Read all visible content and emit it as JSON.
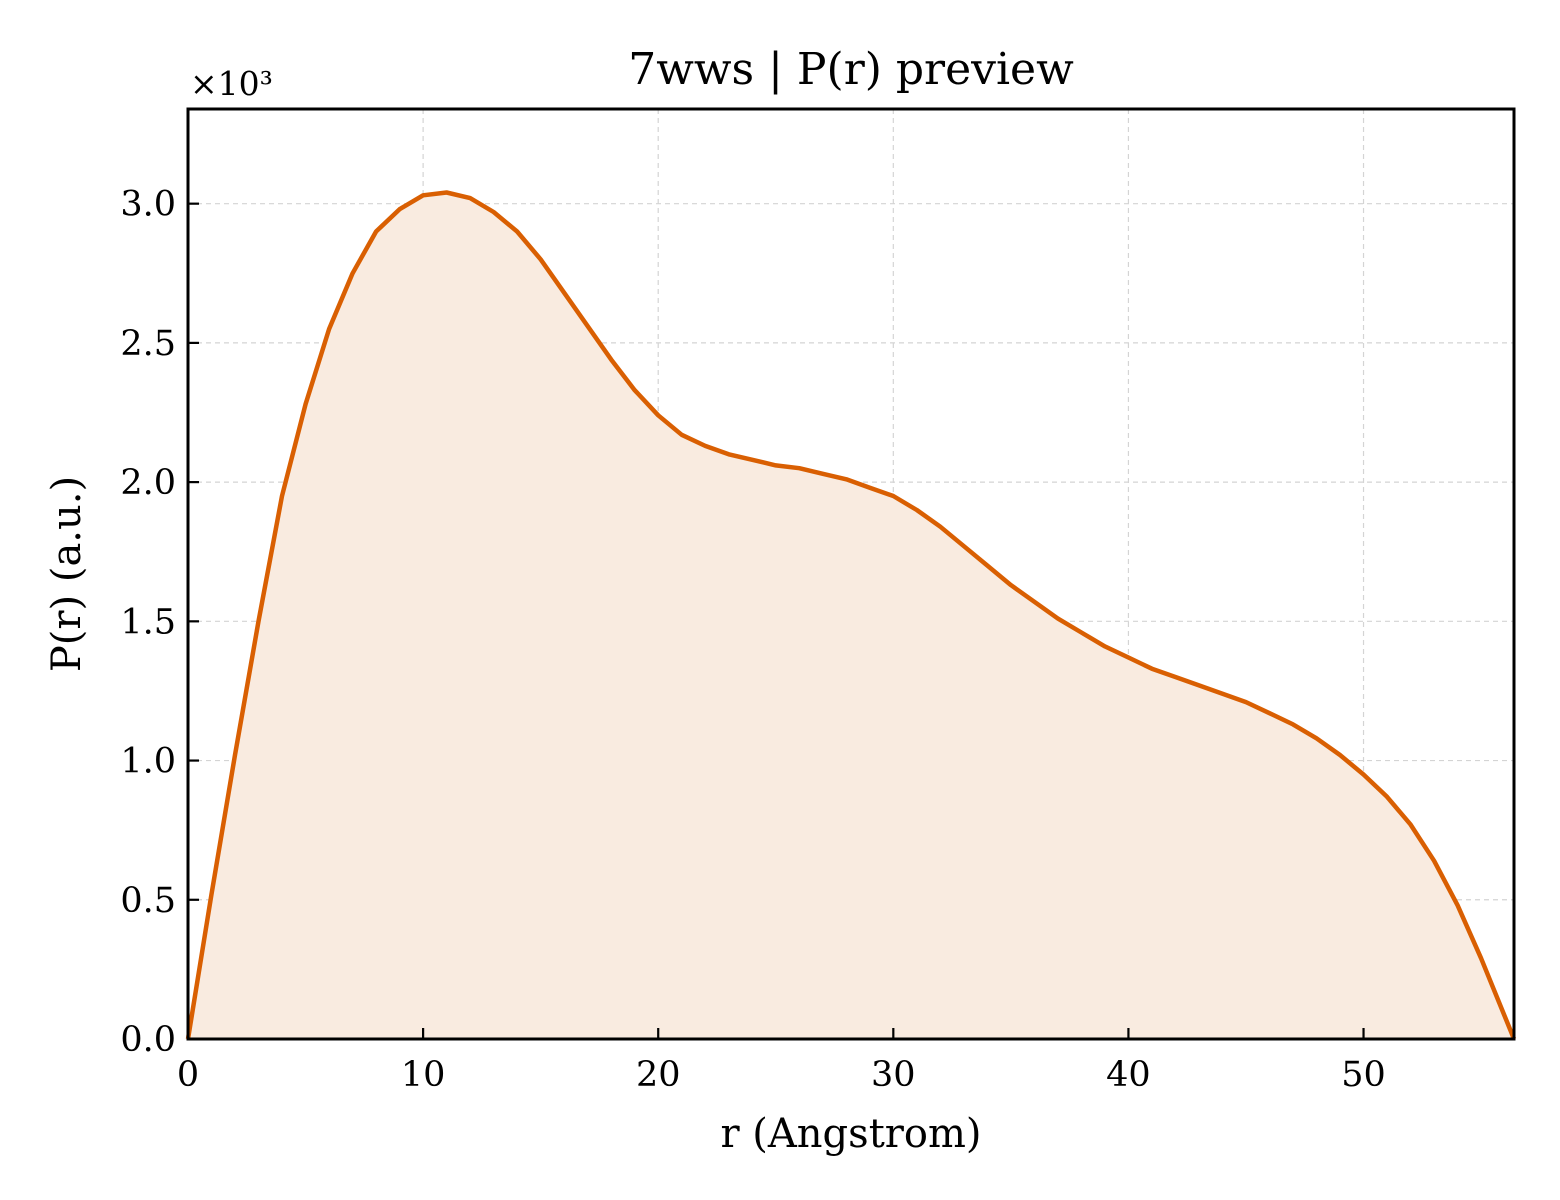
{
  "chart_data": {
    "type": "area",
    "title": "7wws | P(r) preview",
    "xlabel": "r (Angstrom)",
    "ylabel": "P(r) (a.u.)",
    "y_multiplier_label": "×10³",
    "xlim": [
      0,
      56.4
    ],
    "ylim": [
      0,
      3.34
    ],
    "x_ticks": [
      0,
      10,
      20,
      30,
      40,
      50
    ],
    "x_tick_labels": [
      "0",
      "10",
      "20",
      "30",
      "40",
      "50"
    ],
    "y_ticks": [
      0,
      0.5,
      1.0,
      1.5,
      2.0,
      2.5,
      3.0
    ],
    "y_tick_labels": [
      "0.0",
      "0.5",
      "1.0",
      "1.5",
      "2.0",
      "2.5",
      "3.0"
    ],
    "grid": true,
    "line_color": "#d95f02",
    "fill_color": "#f9ebe0",
    "series": [
      {
        "x": [
          0,
          1,
          2,
          3,
          4,
          5,
          6,
          7,
          8,
          9,
          10,
          11,
          12,
          13,
          14,
          15,
          16,
          17,
          18,
          19,
          20,
          21,
          22,
          23,
          24,
          25,
          26,
          27,
          28,
          29,
          30,
          31,
          32,
          33,
          34,
          35,
          36,
          37,
          38,
          39,
          40,
          41,
          42,
          43,
          44,
          45,
          46,
          47,
          48,
          49,
          50,
          51,
          52,
          53,
          54,
          55,
          56.4
        ],
        "y": [
          0,
          0.52,
          1.02,
          1.5,
          1.95,
          2.28,
          2.55,
          2.75,
          2.9,
          2.98,
          3.03,
          3.04,
          3.02,
          2.97,
          2.9,
          2.8,
          2.68,
          2.56,
          2.44,
          2.33,
          2.24,
          2.17,
          2.13,
          2.1,
          2.08,
          2.06,
          2.05,
          2.03,
          2.01,
          1.98,
          1.95,
          1.9,
          1.84,
          1.77,
          1.7,
          1.63,
          1.57,
          1.51,
          1.46,
          1.41,
          1.37,
          1.33,
          1.3,
          1.27,
          1.24,
          1.21,
          1.17,
          1.13,
          1.08,
          1.02,
          0.95,
          0.87,
          0.77,
          0.64,
          0.48,
          0.29,
          0
        ]
      }
    ]
  }
}
